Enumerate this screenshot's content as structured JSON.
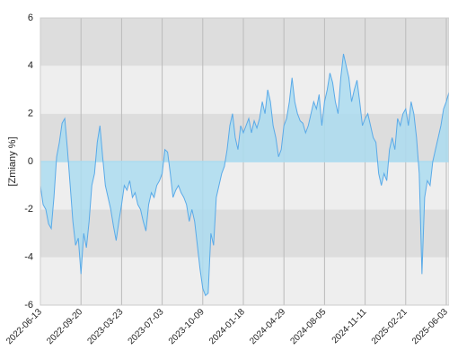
{
  "chart_data": {
    "type": "area",
    "y_label": "[Zmiany %]",
    "ylim": [
      -6,
      6
    ],
    "yticks": [
      -6,
      -4,
      -2,
      0,
      2,
      4,
      6
    ],
    "grid": true,
    "band_colors": [
      "#eeeeee",
      "#dddddd"
    ],
    "categories": [
      "2022-06-13",
      null,
      null,
      null,
      null,
      null,
      null,
      null,
      null,
      null,
      null,
      null,
      null,
      null,
      null,
      "2022-09-20",
      null,
      null,
      null,
      null,
      null,
      null,
      null,
      null,
      null,
      null,
      null,
      null,
      null,
      null,
      "2023-03-23",
      null,
      null,
      null,
      null,
      null,
      null,
      null,
      null,
      null,
      null,
      null,
      null,
      null,
      null,
      "2023-07-03",
      null,
      null,
      null,
      null,
      null,
      null,
      null,
      null,
      null,
      null,
      null,
      null,
      null,
      null,
      "2023-10-09",
      null,
      null,
      null,
      null,
      null,
      null,
      null,
      null,
      null,
      null,
      null,
      null,
      null,
      null,
      "2024-01-18",
      null,
      null,
      null,
      null,
      null,
      null,
      null,
      null,
      null,
      null,
      null,
      null,
      null,
      null,
      "2024-04-29",
      null,
      null,
      null,
      null,
      null,
      null,
      null,
      null,
      null,
      null,
      null,
      null,
      null,
      null,
      "2024-08-05",
      null,
      null,
      null,
      null,
      null,
      null,
      null,
      null,
      null,
      null,
      null,
      null,
      null,
      null,
      "2024-11-11",
      null,
      null,
      null,
      null,
      null,
      null,
      null,
      null,
      null,
      null,
      null,
      null,
      null,
      null,
      "2025-02-21",
      null,
      null,
      null,
      null,
      null,
      null,
      null,
      null,
      null,
      null,
      null,
      null,
      null,
      null,
      "2025-06-03",
      null
    ],
    "series": [
      {
        "color": "#5aaae8",
        "fill": "#acdcf0",
        "values": [
          -1.0,
          -1.8,
          -2.0,
          -2.6,
          -2.8,
          -1.5,
          0.2,
          0.8,
          1.6,
          1.8,
          0.5,
          -1.0,
          -2.5,
          -3.5,
          -3.2,
          -4.7,
          -3.0,
          -3.6,
          -2.5,
          -1.0,
          -0.5,
          0.8,
          1.5,
          0.2,
          -1.0,
          -1.5,
          -2.0,
          -2.7,
          -3.3,
          -2.5,
          -1.8,
          -1.0,
          -1.2,
          -0.8,
          -1.5,
          -1.3,
          -1.8,
          -2.0,
          -2.5,
          -2.9,
          -1.8,
          -1.3,
          -1.5,
          -1.0,
          -0.8,
          -0.5,
          0.5,
          0.4,
          -0.5,
          -1.5,
          -1.2,
          -1.0,
          -1.3,
          -1.5,
          -1.8,
          -2.5,
          -2.0,
          -2.5,
          -3.5,
          -4.5,
          -5.3,
          -5.6,
          -5.5,
          -3.0,
          -3.5,
          -1.5,
          -1.0,
          -0.5,
          -0.2,
          0.5,
          1.5,
          2.0,
          1.0,
          0.5,
          1.5,
          1.2,
          1.5,
          1.8,
          1.2,
          1.7,
          1.4,
          1.8,
          2.5,
          2.0,
          3.0,
          2.5,
          1.5,
          1.0,
          0.2,
          0.5,
          1.5,
          1.8,
          2.5,
          3.5,
          2.5,
          2.0,
          1.7,
          1.6,
          1.2,
          1.5,
          2.0,
          2.5,
          2.2,
          2.8,
          1.5,
          2.5,
          3.0,
          3.7,
          3.3,
          2.5,
          2.0,
          3.5,
          4.5,
          4.0,
          3.5,
          2.5,
          3.0,
          3.4,
          2.5,
          1.5,
          1.8,
          2.0,
          1.5,
          1.0,
          0.8,
          -0.5,
          -1.0,
          -0.5,
          -0.8,
          0.5,
          1.0,
          0.5,
          1.8,
          1.5,
          2.0,
          2.2,
          1.5,
          2.5,
          2.0,
          1.0,
          -0.5,
          -4.7,
          -1.5,
          -0.8,
          -1.0,
          0.0,
          0.5,
          1.0,
          1.5,
          2.2,
          2.5,
          2.9
        ]
      }
    ]
  }
}
